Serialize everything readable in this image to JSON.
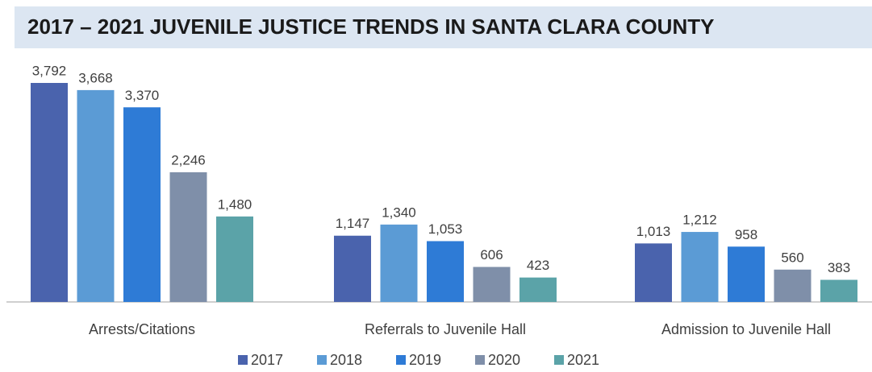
{
  "chart_data": {
    "type": "bar",
    "title": "2017 – 2021 JUVENILE JUSTICE TRENDS IN SANTA CLARA COUNTY",
    "categories": [
      "Arrests/Citations",
      "Referrals to Juvenile Hall",
      "Admission to Juvenile Hall"
    ],
    "series": [
      {
        "name": "2017",
        "color": "#4a63ad",
        "values": [
          3792,
          1147,
          1013
        ],
        "value_labels": [
          "3,792",
          "1,147",
          "1,013"
        ]
      },
      {
        "name": "2018",
        "color": "#5b9bd5",
        "values": [
          3668,
          1340,
          1212
        ],
        "value_labels": [
          "3,668",
          "1,340",
          "1,212"
        ]
      },
      {
        "name": "2019",
        "color": "#2e7bd6",
        "values": [
          3370,
          1053,
          958
        ],
        "value_labels": [
          "3,370",
          "1,053",
          "958"
        ]
      },
      {
        "name": "2020",
        "color": "#7f8fa9",
        "values": [
          2246,
          606,
          560
        ],
        "value_labels": [
          "2,246",
          "606",
          "560"
        ]
      },
      {
        "name": "2021",
        "color": "#5ba3a8",
        "values": [
          1480,
          423,
          383
        ],
        "value_labels": [
          "1,480",
          "423",
          "383"
        ]
      }
    ],
    "legend": "bottom"
  }
}
